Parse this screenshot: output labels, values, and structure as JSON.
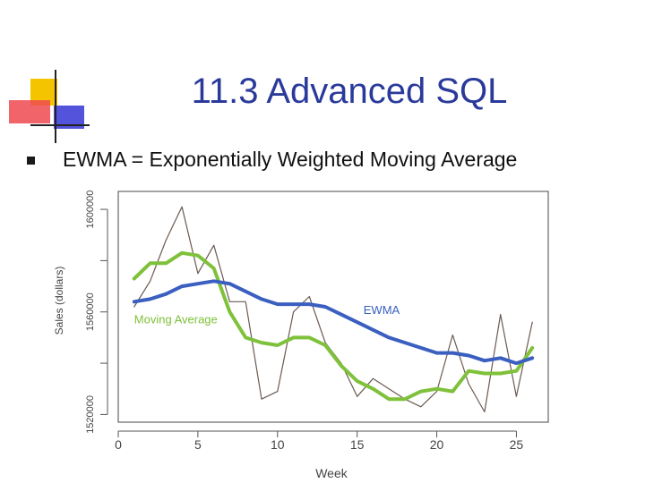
{
  "slide": {
    "title": "11.3 Advanced SQL",
    "bullet": "EWMA = Exponentially Weighted Moving Average"
  },
  "colors": {
    "title": "#2a3a9a",
    "ewma": "#3a5fc0",
    "moving_average": "#7fc13a",
    "sales": "#6b5a52",
    "logo_yellow": "#f5c400",
    "logo_red": "#e8333a",
    "logo_blue": "#3a3ad0"
  },
  "chart_data": {
    "type": "line",
    "title": "",
    "xlabel": "Week",
    "ylabel": "Sales (dollars)",
    "xlim": [
      0,
      27
    ],
    "ylim": [
      1517000,
      1607000
    ],
    "xticks": [
      0,
      5,
      10,
      15,
      20,
      25
    ],
    "yticks": [
      1520000,
      1540000,
      1560000,
      1580000,
      1600000
    ],
    "ytick_labels": [
      "1520000",
      "",
      "1560000",
      "",
      "1600000"
    ],
    "grid": false,
    "annotations": [
      {
        "text": "EWMA",
        "series": "ewma",
        "x": 15.4,
        "y": 1559200
      },
      {
        "text": "Moving Average",
        "series": "moving_average",
        "x": 1.0,
        "y": 1555500
      }
    ],
    "series": [
      {
        "key": "sales",
        "name": "",
        "x": [
          1,
          2,
          3,
          4,
          5,
          6,
          7,
          8,
          9,
          10,
          11,
          12,
          13,
          14,
          15,
          16,
          17,
          18,
          19,
          20,
          21,
          22,
          23,
          24,
          25,
          26
        ],
        "y": [
          1562000,
          1572000,
          1588000,
          1601000,
          1575000,
          1586000,
          1564000,
          1564000,
          1526000,
          1529000,
          1560000,
          1566000,
          1548000,
          1540000,
          1527000,
          1534000,
          1530000,
          1526000,
          1523000,
          1529000,
          1551000,
          1532000,
          1521000,
          1559000,
          1527000,
          1556000
        ]
      },
      {
        "key": "moving_average",
        "name": "",
        "x": [
          1,
          2,
          3,
          4,
          5,
          6,
          7,
          8,
          9,
          10,
          11,
          12,
          13,
          14,
          15,
          16,
          17,
          18,
          19,
          20,
          21,
          22,
          23,
          24,
          25,
          26
        ],
        "y": [
          1573000,
          1579000,
          1579000,
          1583000,
          1582000,
          1577000,
          1560000,
          1550000,
          1548000,
          1547000,
          1550000,
          1550000,
          1547000,
          1539000,
          1533000,
          1530000,
          1526000,
          1526000,
          1529000,
          1530000,
          1529000,
          1537000,
          1536000,
          1536000,
          1537000,
          1546000
        ]
      },
      {
        "key": "ewma",
        "name": "",
        "x": [
          1,
          2,
          3,
          4,
          5,
          6,
          7,
          8,
          9,
          10,
          11,
          12,
          13,
          14,
          15,
          16,
          17,
          18,
          19,
          20,
          21,
          22,
          23,
          24,
          25,
          26
        ],
        "y": [
          1564000,
          1565000,
          1567000,
          1570000,
          1571000,
          1572000,
          1571000,
          1568000,
          1565000,
          1563000,
          1563000,
          1563000,
          1562000,
          1559000,
          1556000,
          1553000,
          1550000,
          1548000,
          1546000,
          1544000,
          1544000,
          1543000,
          1541000,
          1542000,
          1540000,
          1542000
        ]
      }
    ]
  }
}
